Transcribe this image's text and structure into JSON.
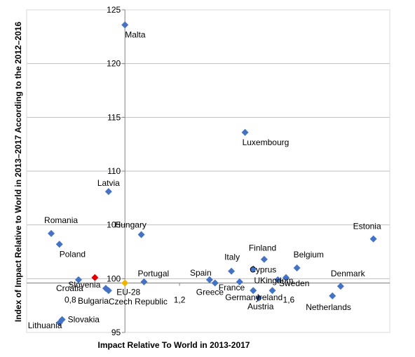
{
  "chart_data": {
    "type": "scatter",
    "xlabel": "Impact Relative To World in 2013-2017",
    "ylabel": "Index of Impact Relative to World in 2013–2017 According to the 2012–2016",
    "x_tick_labels": [
      "0,8",
      "1,2",
      "1,6"
    ],
    "y_tick_labels": [
      "95",
      "100",
      "105",
      "110",
      "115",
      "120",
      "125"
    ],
    "xlim": [
      0.64,
      1.97
    ],
    "ylim": [
      95,
      125
    ],
    "y_crossing": 99.6,
    "grid": "horizontal",
    "colors": {
      "default": "#4472C4",
      "slovenia": "#E00000",
      "eu28": "#F0B400",
      "grid": "#BFBFBF"
    },
    "points": [
      {
        "label": "Malta",
        "x": 1.0,
        "y": 123.6
      },
      {
        "label": "Luxembourg",
        "x": 1.44,
        "y": 113.6
      },
      {
        "label": "Latvia",
        "x": 0.94,
        "y": 108.1
      },
      {
        "label": "Romania",
        "x": 0.73,
        "y": 104.2
      },
      {
        "label": "Hungary",
        "x": 1.06,
        "y": 104.1
      },
      {
        "label": "Estonia",
        "x": 1.91,
        "y": 103.7
      },
      {
        "label": "Poland",
        "x": 0.76,
        "y": 103.2
      },
      {
        "label": "Finland",
        "x": 1.51,
        "y": 101.8
      },
      {
        "label": "Belgium",
        "x": 1.63,
        "y": 101.0
      },
      {
        "label": "Cyprus",
        "x": 1.47,
        "y": 100.9
      },
      {
        "label": "Italy",
        "x": 1.39,
        "y": 100.7
      },
      {
        "label": "Slovenia",
        "x": 0.89,
        "y": 100.1,
        "color": "slovenia"
      },
      {
        "label": "Sweden",
        "x": 1.59,
        "y": 100.1
      },
      {
        "label": "Spain",
        "x": 1.31,
        "y": 99.9
      },
      {
        "label": "UKingdom",
        "x": 1.56,
        "y": 99.9
      },
      {
        "label": "Croatia",
        "x": 0.83,
        "y": 99.9
      },
      {
        "label": "Portugal",
        "x": 1.07,
        "y": 99.7
      },
      {
        "label": "France",
        "x": 1.42,
        "y": 99.7
      },
      {
        "label": "EU-28",
        "x": 1.0,
        "y": 99.6,
        "color": "eu28"
      },
      {
        "label": "Greece",
        "x": 1.33,
        "y": 99.6
      },
      {
        "label": "Denmark",
        "x": 1.79,
        "y": 99.3
      },
      {
        "label": "Bulgaria",
        "x": 0.93,
        "y": 99.1
      },
      {
        "label": "Czech Republic",
        "x": 0.94,
        "y": 98.9
      },
      {
        "label": "Ireland",
        "x": 1.54,
        "y": 98.9
      },
      {
        "label": "Germany",
        "x": 1.47,
        "y": 98.9
      },
      {
        "label": "Netherlands",
        "x": 1.76,
        "y": 98.4
      },
      {
        "label": "Austria",
        "x": 1.49,
        "y": 98.2
      },
      {
        "label": "Slovakia",
        "x": 0.77,
        "y": 96.2
      },
      {
        "label": "Lithuania",
        "x": 0.76,
        "y": 95.9
      }
    ]
  }
}
